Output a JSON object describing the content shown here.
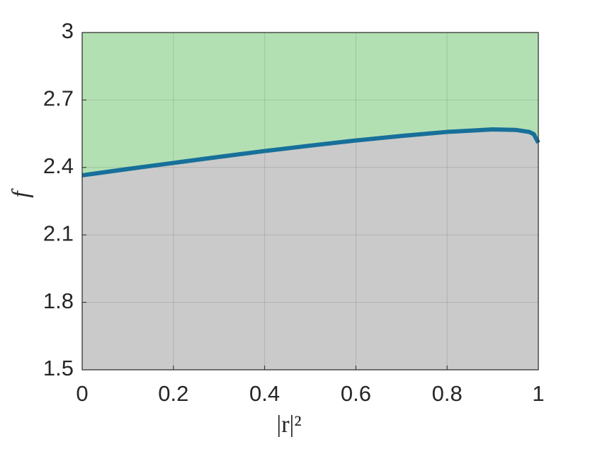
{
  "chart_data": {
    "type": "line",
    "xlabel": "|r|²",
    "ylabel": "f",
    "x": [
      0,
      0.1,
      0.2,
      0.3,
      0.4,
      0.5,
      0.6,
      0.7,
      0.8,
      0.9,
      0.95,
      0.98,
      0.99,
      1.0
    ],
    "series": [
      {
        "color": "#17709a",
        "above_color": "#b3e0b3",
        "below_color": "#cacaca",
        "values": [
          2.365,
          2.393,
          2.42,
          2.447,
          2.473,
          2.497,
          2.52,
          2.54,
          2.558,
          2.569,
          2.567,
          2.558,
          2.548,
          2.51
        ]
      }
    ],
    "xlim": [
      0,
      1
    ],
    "ylim": [
      1.5,
      3
    ],
    "xticks": [
      0,
      0.2,
      0.4,
      0.6,
      0.8,
      1
    ],
    "yticks": [
      1.5,
      1.8,
      2.1,
      2.4,
      2.7,
      3
    ],
    "grid": true
  }
}
